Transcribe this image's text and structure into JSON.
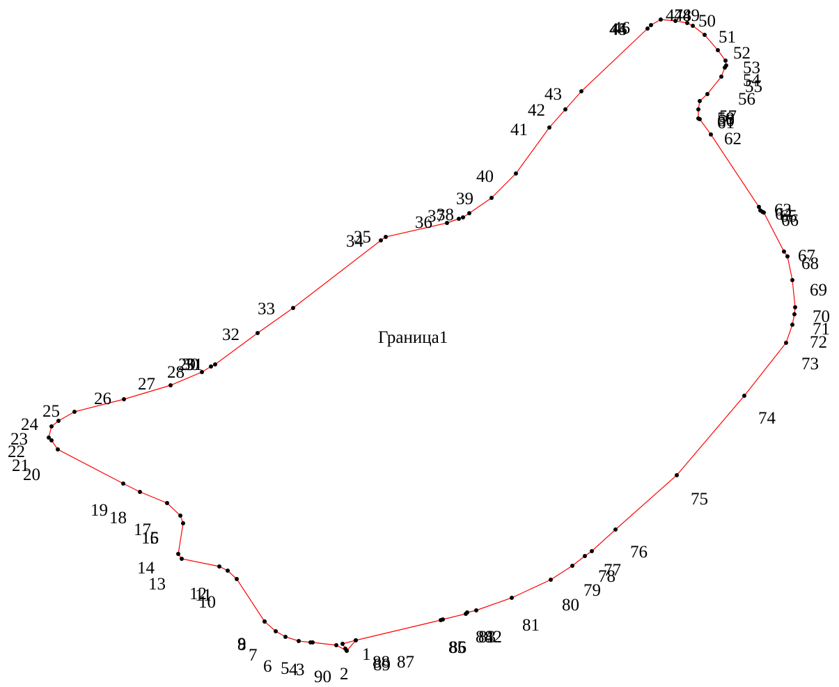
{
  "title": "Граница1",
  "colors": {
    "line": "#ff0000",
    "point": "#000000"
  },
  "point_labels": [
    "1",
    "2",
    "3",
    "4",
    "5",
    "6",
    "7",
    "8",
    "9",
    "10",
    "11",
    "12",
    "13",
    "14",
    "15",
    "16",
    "17",
    "18",
    "19",
    "20",
    "21",
    "22",
    "23",
    "24",
    "25",
    "26",
    "27",
    "28",
    "29",
    "30",
    "31",
    "32",
    "33",
    "34",
    "35",
    "36",
    "37",
    "38",
    "39",
    "40",
    "41",
    "42",
    "43",
    "44",
    "45",
    "46",
    "47",
    "48",
    "49",
    "50",
    "51",
    "52",
    "53",
    "54",
    "55",
    "56",
    "57",
    "58",
    "59",
    "60",
    "61",
    "62",
    "63",
    "64",
    "65",
    "66",
    "67",
    "68",
    "69",
    "70",
    "71",
    "72",
    "73",
    "74",
    "75",
    "76",
    "77",
    "78",
    "79",
    "80",
    "81",
    "82",
    "83",
    "84",
    "85",
    "86",
    "87",
    "88",
    "89",
    "90"
  ]
}
